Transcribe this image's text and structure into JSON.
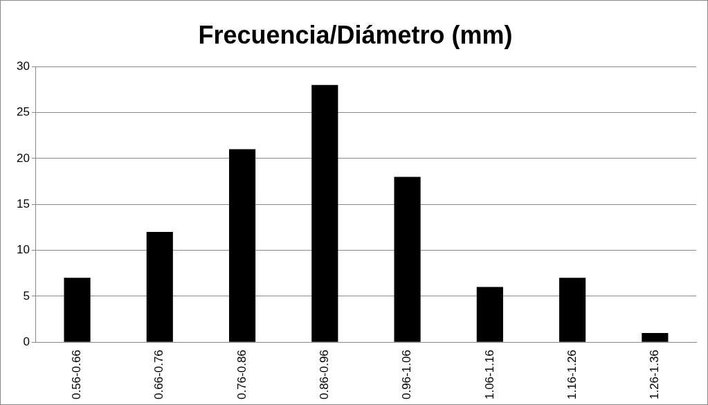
{
  "chart_data": {
    "type": "bar",
    "title": "Frecuencia/Diámetro (mm)",
    "categories": [
      "0.56-0.66",
      "0.66-0.76",
      "0.76-0.86",
      "0.86-0.96",
      "0.96-1.06",
      "1.06-1.16",
      "1.16-1.26",
      "1.26-1.36"
    ],
    "values": [
      7,
      12,
      21,
      28,
      18,
      6,
      7,
      1
    ],
    "color": "#000000",
    "ylim": [
      0,
      30
    ],
    "yticks": [
      0,
      5,
      10,
      15,
      20,
      25,
      30
    ],
    "grid": "y",
    "legend": false
  }
}
